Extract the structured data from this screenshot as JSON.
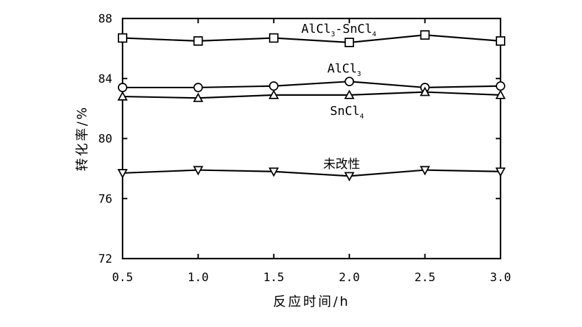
{
  "chart_data": {
    "type": "line",
    "title": "",
    "xlabel": "反应时间/h",
    "ylabel": "转化率/%",
    "x": [
      0.5,
      1.0,
      1.5,
      2.0,
      2.5,
      3.0
    ],
    "x_tick_labels": [
      "0.5",
      "1.0",
      "1.5",
      "2.0",
      "2.5",
      "3.0"
    ],
    "xlim": [
      0.5,
      3.0
    ],
    "ylim": [
      72,
      88
    ],
    "y_ticks": [
      72,
      76,
      80,
      84,
      88
    ],
    "y_tick_labels": [
      "72",
      "76",
      "80",
      "84",
      "88"
    ],
    "grid": false,
    "series": [
      {
        "name": "AlCl3-SnCl4",
        "label_main": "AlCl",
        "label_sub1": "3",
        "label_mid": "-SnCl",
        "label_sub2": "4",
        "marker": "square",
        "values": [
          86.7,
          86.5,
          86.7,
          86.4,
          86.9,
          86.5
        ]
      },
      {
        "name": "AlCl3",
        "label_main": "AlCl",
        "label_sub1": "3",
        "label_mid": "",
        "label_sub2": "",
        "marker": "circle",
        "values": [
          83.4,
          83.4,
          83.5,
          83.8,
          83.4,
          83.5
        ]
      },
      {
        "name": "SnCl4",
        "label_main": "SnCl",
        "label_sub1": "4",
        "label_mid": "",
        "label_sub2": "",
        "marker": "triangle-up",
        "values": [
          82.8,
          82.7,
          82.9,
          82.9,
          83.1,
          82.9
        ]
      },
      {
        "name": "未改性",
        "label_main": "未改性",
        "label_sub1": "",
        "label_mid": "",
        "label_sub2": "",
        "marker": "triangle-down",
        "values": [
          77.7,
          77.9,
          77.8,
          77.5,
          77.9,
          77.8
        ]
      }
    ]
  }
}
